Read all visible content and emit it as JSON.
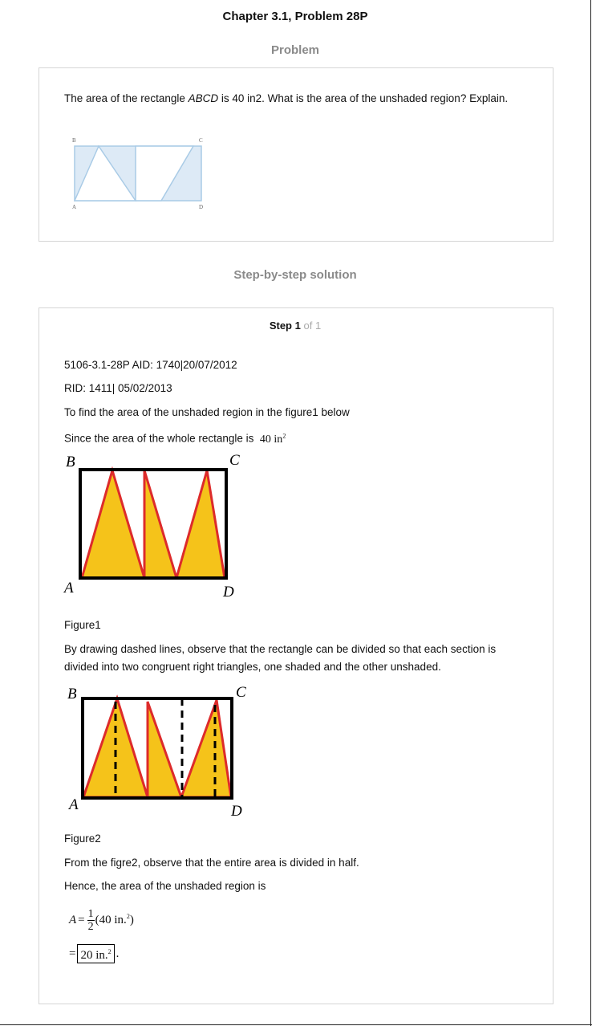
{
  "header": {
    "title": "Chapter 3.1, Problem 28P"
  },
  "problem": {
    "heading": "Problem",
    "text_before": "The area of the rectangle ",
    "text_italic": "ABCD",
    "text_after": " is 40 in2. What is the area of the unshaded region? Explain.",
    "figure_labels": {
      "A": "A",
      "B": "B",
      "C": "C",
      "D": "D"
    }
  },
  "solution": {
    "heading": "Step-by-step solution",
    "step_word": "Step",
    "step_number": "1",
    "step_of": "of 1",
    "line_aid": "5106-3.1-28P AID: 1740|20/07/2012",
    "line_rid": "RID: 1411| 05/02/2013",
    "line_intro": "To find the area of the unshaded region in the figure1 below",
    "line_since": "Since the area of the whole rectangle is",
    "since_value": "40 in",
    "since_exp": "2",
    "figure1_labels": {
      "A": "A",
      "B": "B",
      "C": "C",
      "D": "D"
    },
    "figure1_caption": "Figure1",
    "para_dashed": "By drawing dashed lines, observe that the rectangle can be divided so that each section is divided into two congruent right triangles, one shaded and the other unshaded.",
    "figure2_labels": {
      "A": "A",
      "B": "B",
      "C": "C",
      "D": "D"
    },
    "figure2_caption": "Figure2",
    "line_from": "From the figre2, observe that the entire area is divided in half.",
    "line_hence": "Hence, the area of the unshaded region is",
    "eq1_lhs": "A",
    "eq1_eq": "=",
    "eq1_num": "1",
    "eq1_den": "2",
    "eq1_body": "(40 in.",
    "eq1_exp": "2",
    "eq1_close": ")",
    "eq2_eq": "=",
    "eq2_value": "20 in.",
    "eq2_exp": "2",
    "eq2_dot": "."
  },
  "colors": {
    "shade": "#f5c31a",
    "triangle_edge": "#dd2b2b",
    "sketch_line": "#a9cbe6",
    "sketch_fill": "#ddeaf6"
  }
}
